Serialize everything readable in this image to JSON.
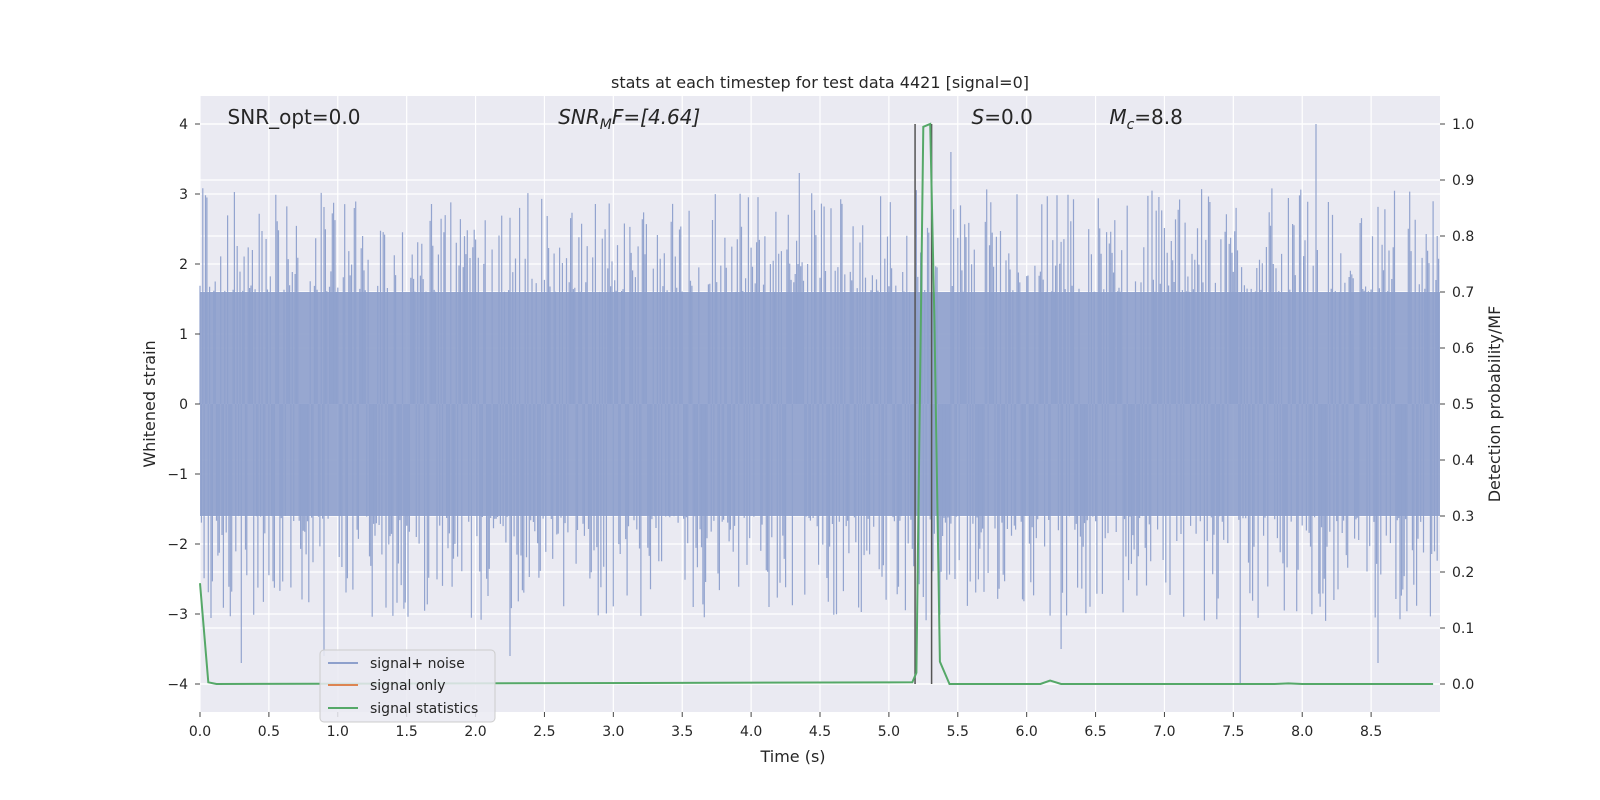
{
  "chart_data": {
    "type": "line",
    "title": "stats at each timestep for test data 4421 [signal=0]",
    "xlabel": "Time (s)",
    "ylabel": "Whitened strain",
    "y2label": "Detection probability/MF",
    "xlim": [
      0.0,
      9.0
    ],
    "ylim": [
      -4.4,
      4.4
    ],
    "y2lim": [
      -0.05,
      1.05
    ],
    "grid": true,
    "legend_position": "lower-left",
    "xticks": [
      0.0,
      0.5,
      1.0,
      1.5,
      2.0,
      2.5,
      3.0,
      3.5,
      4.0,
      4.5,
      5.0,
      5.5,
      6.0,
      6.5,
      7.0,
      7.5,
      8.0,
      8.5
    ],
    "xtick_labels": [
      "0.0",
      "0.5",
      "1.0",
      "1.5",
      "2.0",
      "2.5",
      "3.0",
      "3.5",
      "4.0",
      "4.5",
      "5.0",
      "5.5",
      "6.0",
      "6.5",
      "7.0",
      "7.5",
      "8.0",
      "8.5"
    ],
    "yticks": [
      4,
      3,
      2,
      1,
      0,
      -1,
      -2,
      -3,
      -4
    ],
    "ytick_labels": [
      "4",
      "3",
      "2",
      "1",
      "0",
      "−1",
      "−2",
      "−3",
      "−4"
    ],
    "y2ticks": [
      1.0,
      0.9,
      0.8,
      0.7,
      0.6,
      0.5,
      0.4,
      0.3,
      0.2,
      0.1,
      0.0
    ],
    "y2tick_labels": [
      "1.0",
      "0.9",
      "0.8",
      "0.7",
      "0.6",
      "0.5",
      "0.4",
      "0.3",
      "0.2",
      "0.1",
      "0.0"
    ],
    "annotations": [
      {
        "label": "SNR_opt=0.0",
        "x": 0.2
      },
      {
        "label": "SNR_MF=[4.64]",
        "x": 2.6
      },
      {
        "label": "S=0.0",
        "x": 5.6
      },
      {
        "label": "M_c=8.8",
        "x": 6.6
      }
    ],
    "vertical_lines": [
      {
        "x": 5.19,
        "y_from": -4.0,
        "y_to": 4.0
      },
      {
        "x": 5.31,
        "y_from": -4.0,
        "y_to": 4.0
      }
    ],
    "series": [
      {
        "name": "signal+ noise",
        "color": "#8ea0cc",
        "axis": "left",
        "style": "noise-band",
        "band_min": -1.6,
        "band_max": 1.6,
        "spike_range": [
          -3.7,
          4.0
        ],
        "notable_peaks": [
          [
            0.05,
            2.95
          ],
          [
            0.3,
            -3.7
          ],
          [
            0.9,
            -3.6
          ],
          [
            2.25,
            -3.6
          ],
          [
            4.35,
            3.3
          ],
          [
            5.45,
            3.6
          ],
          [
            6.25,
            -3.5
          ],
          [
            7.55,
            -4.0
          ],
          [
            8.1,
            4.0
          ],
          [
            8.55,
            -3.7
          ],
          [
            8.98,
            2.4
          ]
        ]
      },
      {
        "name": "signal only",
        "color": "#dd8452",
        "axis": "left",
        "values": []
      },
      {
        "name": "signal statistics",
        "color": "#55a868",
        "axis": "right",
        "points": [
          [
            0.0,
            0.18
          ],
          [
            0.06,
            0.003
          ],
          [
            0.12,
            0.0
          ],
          [
            5.17,
            0.003
          ],
          [
            5.2,
            0.02
          ],
          [
            5.25,
            0.995
          ],
          [
            5.3,
            1.0
          ],
          [
            5.33,
            0.65
          ],
          [
            5.37,
            0.04
          ],
          [
            5.44,
            0.0
          ],
          [
            6.1,
            0.0
          ],
          [
            6.17,
            0.006
          ],
          [
            6.25,
            0.0
          ],
          [
            7.8,
            0.0
          ],
          [
            7.9,
            0.001
          ],
          [
            8.0,
            0.0
          ],
          [
            8.95,
            0.0
          ]
        ]
      }
    ]
  }
}
